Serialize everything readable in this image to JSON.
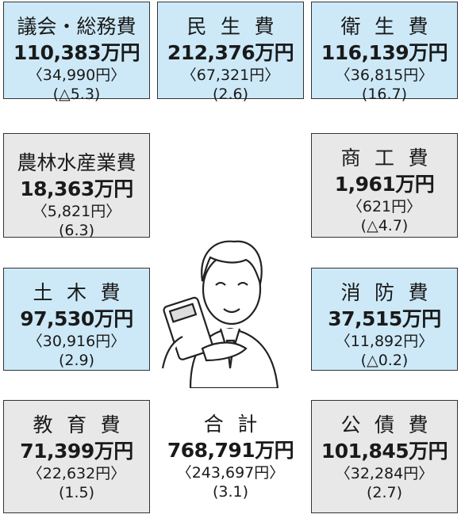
{
  "cells": [
    {
      "name": "議会・総務費",
      "amount": "110,383万円",
      "per_capita": "〈34,990円〉",
      "change": "(△5.3)"
    },
    {
      "name": "民生費",
      "amount": "212,376万円",
      "per_capita": "〈67,321円〉",
      "change": "(2.6)"
    },
    {
      "name": "衛生費",
      "amount": "116,139万円",
      "per_capita": "〈36,815円〉",
      "change": "(16.7)"
    },
    {
      "name": "農林水産業費",
      "amount": "18,363万円",
      "per_capita": "〈5,821円〉",
      "change": "(6.3)"
    },
    {
      "name": "商工費",
      "amount": "1,961万円",
      "per_capita": "〈621円〉",
      "change": "(△4.7)"
    },
    {
      "name": "土木費",
      "amount": "97,530万円",
      "per_capita": "〈30,916円〉",
      "change": "(2.9)"
    },
    {
      "name": "消防費",
      "amount": "37,515万円",
      "per_capita": "〈11,892円〉",
      "change": "(△0.2)"
    },
    {
      "name": "教育費",
      "amount": "71,399万円",
      "per_capita": "〈22,632円〉",
      "change": "(1.5)"
    },
    {
      "name": "合計",
      "amount": "768,791万円",
      "per_capita": "〈243,697円〉",
      "change": "(3.1)"
    },
    {
      "name": "公債費",
      "amount": "101,845万円",
      "per_capita": "〈32,284円〉",
      "change": "(2.7)"
    }
  ]
}
